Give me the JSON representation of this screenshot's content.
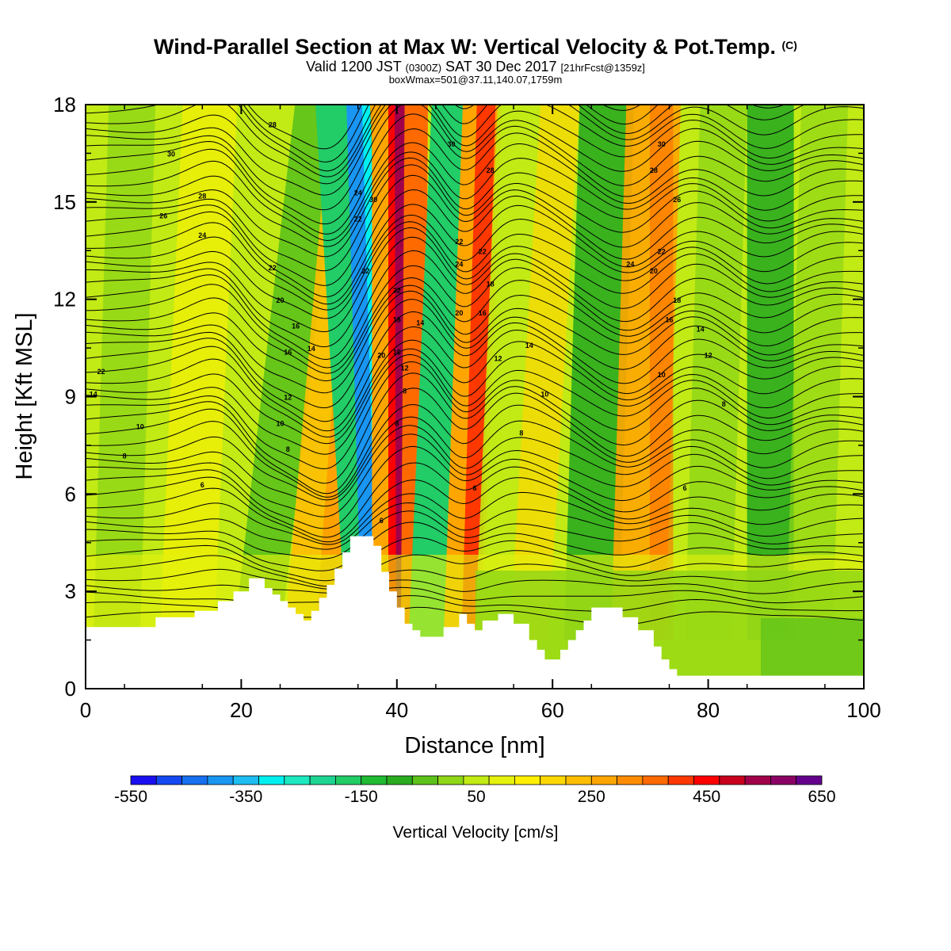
{
  "header": {
    "title_main": "Wind-Parallel Section at Max W: Vertical Velocity & Pot.Temp.",
    "title_mark": "(C)",
    "valid_a": "Valid 1200 JST",
    "valid_b": "(0300Z)",
    "valid_c": "SAT 30 Dec 2017",
    "valid_d": "[21hrFcst@1359z]",
    "box_info": "boxWmax=501@37.11,140.07,1759m"
  },
  "chart_data": {
    "type": "heatmap",
    "xlabel": "Distance [nm]",
    "ylabel": "Height [Kft MSL]",
    "xlim": [
      0,
      100
    ],
    "ylim": [
      0,
      18
    ],
    "x_ticks": [
      0,
      20,
      40,
      60,
      80,
      100
    ],
    "y_ticks": [
      0,
      3,
      6,
      9,
      12,
      15,
      18
    ],
    "colorbar": {
      "label": "Vertical Velocity [cm/s]",
      "tick_labels": [
        "-550",
        "-350",
        "-150",
        "50",
        "250",
        "450",
        "650"
      ],
      "levels_min": -550,
      "levels_max": 650,
      "levels_step": 50,
      "colors": [
        "#1a0ff0",
        "#1448f0",
        "#1670ef",
        "#1995f2",
        "#1dbdf2",
        "#00f0f0",
        "#1de8c0",
        "#1ed493",
        "#22cc66",
        "#1fbb33",
        "#2aac1f",
        "#5cc21a",
        "#8fd617",
        "#c2ea14",
        "#e5f10e",
        "#fff000",
        "#ffd700",
        "#ffbe00",
        "#ffa500",
        "#ff8c00",
        "#ff6a00",
        "#ff3800",
        "#ff0000",
        "#c8001e",
        "#a0004a",
        "#8a0064",
        "#64008c"
      ]
    },
    "terrain_kft": [
      [
        0,
        1.9
      ],
      [
        9,
        1.9
      ],
      [
        9,
        2.2
      ],
      [
        14,
        2.2
      ],
      [
        14,
        2.4
      ],
      [
        17,
        2.4
      ],
      [
        17,
        2.7
      ],
      [
        19,
        2.7
      ],
      [
        19,
        3.0
      ],
      [
        21,
        3.0
      ],
      [
        21,
        3.4
      ],
      [
        23,
        3.4
      ],
      [
        23,
        3.1
      ],
      [
        24,
        3.1
      ],
      [
        24,
        2.9
      ],
      [
        25,
        2.9
      ],
      [
        25,
        2.7
      ],
      [
        26,
        2.7
      ],
      [
        26,
        2.5
      ],
      [
        27,
        2.5
      ],
      [
        27,
        2.3
      ],
      [
        28,
        2.3
      ],
      [
        28,
        2.1
      ],
      [
        29,
        2.1
      ],
      [
        29,
        2.4
      ],
      [
        30,
        2.4
      ],
      [
        30,
        2.8
      ],
      [
        31,
        2.8
      ],
      [
        31,
        3.2
      ],
      [
        32,
        3.2
      ],
      [
        32,
        3.7
      ],
      [
        33,
        3.7
      ],
      [
        33,
        4.2
      ],
      [
        34,
        4.2
      ],
      [
        34,
        4.7
      ],
      [
        37,
        4.7
      ],
      [
        37,
        4.4
      ],
      [
        38,
        4.4
      ],
      [
        38,
        3.6
      ],
      [
        39,
        3.6
      ],
      [
        39,
        3.0
      ],
      [
        40,
        3.0
      ],
      [
        40,
        2.5
      ],
      [
        41,
        2.5
      ],
      [
        41,
        2.0
      ],
      [
        42,
        2.0
      ],
      [
        42,
        1.8
      ],
      [
        43,
        1.8
      ],
      [
        43,
        1.6
      ],
      [
        46,
        1.6
      ],
      [
        46,
        1.9
      ],
      [
        48,
        1.9
      ],
      [
        48,
        2.3
      ],
      [
        49,
        2.3
      ],
      [
        49,
        2.0
      ],
      [
        50,
        2.0
      ],
      [
        50,
        1.8
      ],
      [
        51,
        1.8
      ],
      [
        51,
        2.1
      ],
      [
        53,
        2.1
      ],
      [
        53,
        2.3
      ],
      [
        55,
        2.3
      ],
      [
        55,
        2.0
      ],
      [
        57,
        2.0
      ],
      [
        57,
        1.5
      ],
      [
        58,
        1.5
      ],
      [
        58,
        1.2
      ],
      [
        59,
        1.2
      ],
      [
        59,
        0.9
      ],
      [
        61,
        0.9
      ],
      [
        61,
        1.2
      ],
      [
        62,
        1.2
      ],
      [
        62,
        1.5
      ],
      [
        63,
        1.5
      ],
      [
        63,
        1.8
      ],
      [
        64,
        1.8
      ],
      [
        64,
        2.1
      ],
      [
        65,
        2.1
      ],
      [
        65,
        2.5
      ],
      [
        69,
        2.5
      ],
      [
        69,
        2.2
      ],
      [
        71,
        2.2
      ],
      [
        71,
        1.8
      ],
      [
        73,
        1.8
      ],
      [
        73,
        1.3
      ],
      [
        74,
        1.3
      ],
      [
        74,
        0.9
      ],
      [
        75,
        0.9
      ],
      [
        75,
        0.6
      ],
      [
        76,
        0.6
      ],
      [
        76,
        0.4
      ],
      [
        100,
        0.4
      ]
    ],
    "theta_label_values": [
      "30",
      "28",
      "26",
      "24",
      "22",
      "20",
      "18",
      "16",
      "14",
      "12",
      "10",
      "8",
      "6"
    ]
  }
}
